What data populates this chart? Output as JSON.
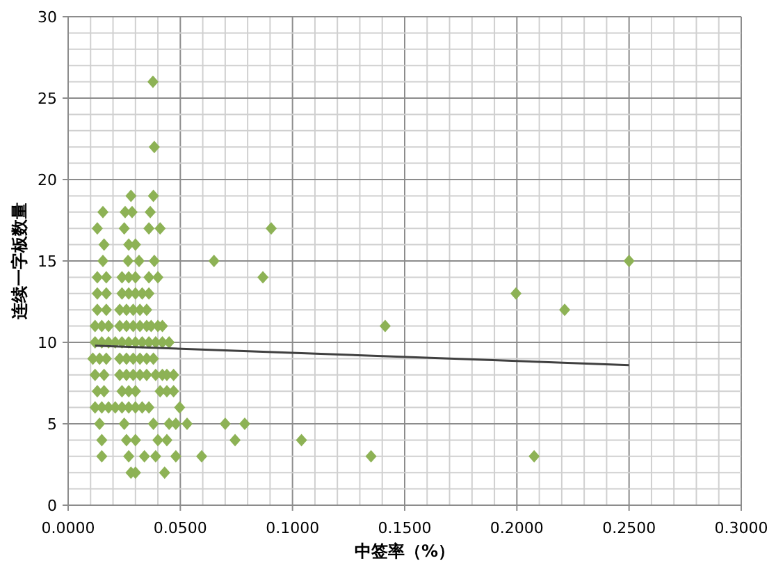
{
  "chart_data": {
    "type": "scatter",
    "xlabel": "中签率（%）",
    "ylabel": "连续一字板数量",
    "xlim": [
      0,
      0.3
    ],
    "ylim": [
      0,
      30
    ],
    "grid": true,
    "marker": "diamond",
    "xticks": [
      {
        "value": 0,
        "label": "0.0000"
      },
      {
        "value": 0.01,
        "label": null
      },
      {
        "value": 0.02,
        "label": null
      },
      {
        "value": 0.03,
        "label": null
      },
      {
        "value": 0.04,
        "label": null
      },
      {
        "value": 0.05,
        "label": "0.0500"
      },
      {
        "value": 0.06,
        "label": null
      },
      {
        "value": 0.07,
        "label": null
      },
      {
        "value": 0.08,
        "label": null
      },
      {
        "value": 0.09,
        "label": null
      },
      {
        "value": 0.1,
        "label": "0.1000"
      },
      {
        "value": 0.11,
        "label": null
      },
      {
        "value": 0.12,
        "label": null
      },
      {
        "value": 0.13,
        "label": null
      },
      {
        "value": 0.14,
        "label": null
      },
      {
        "value": 0.15,
        "label": "0.1500"
      },
      {
        "value": 0.16,
        "label": null
      },
      {
        "value": 0.17,
        "label": null
      },
      {
        "value": 0.18,
        "label": null
      },
      {
        "value": 0.19,
        "label": null
      },
      {
        "value": 0.2,
        "label": "0.2000"
      },
      {
        "value": 0.21,
        "label": null
      },
      {
        "value": 0.22,
        "label": null
      },
      {
        "value": 0.23,
        "label": null
      },
      {
        "value": 0.24,
        "label": null
      },
      {
        "value": 0.25,
        "label": "0.2500"
      },
      {
        "value": 0.26,
        "label": null
      },
      {
        "value": 0.27,
        "label": null
      },
      {
        "value": 0.28,
        "label": null
      },
      {
        "value": 0.29,
        "label": null
      },
      {
        "value": 0.3,
        "label": "0.3000"
      }
    ],
    "yticks": [
      0,
      {
        "value": 1,
        "label": null
      },
      {
        "value": 2,
        "label": null
      },
      {
        "value": 3,
        "label": null
      },
      {
        "value": 4,
        "label": null
      },
      5,
      {
        "value": 6,
        "label": null
      },
      {
        "value": 7,
        "label": null
      },
      {
        "value": 8,
        "label": null
      },
      {
        "value": 9,
        "label": null
      },
      10,
      {
        "value": 11,
        "label": null
      },
      {
        "value": 12,
        "label": null
      },
      {
        "value": 13,
        "label": null
      },
      {
        "value": 14,
        "label": null
      },
      15,
      {
        "value": 16,
        "label": null
      },
      {
        "value": 17,
        "label": null
      },
      {
        "value": 18,
        "label": null
      },
      {
        "value": 19,
        "label": null
      },
      20,
      {
        "value": 21,
        "label": null
      },
      {
        "value": 22,
        "label": null
      },
      {
        "value": 23,
        "label": null
      },
      {
        "value": 24,
        "label": null
      },
      25,
      {
        "value": 26,
        "label": null
      },
      {
        "value": 27,
        "label": null
      },
      {
        "value": 28,
        "label": null
      },
      {
        "value": 29,
        "label": null
      },
      30
    ],
    "series": [
      {
        "color": "#8db255",
        "x": [
          0.0378,
          0.0384,
          0.028,
          0.038,
          0.0155,
          0.0254,
          0.0285,
          0.0366,
          0.013,
          0.025,
          0.036,
          0.041,
          0.0905,
          0.016,
          0.027,
          0.03,
          0.0155,
          0.0267,
          0.0316,
          0.0384,
          0.065,
          0.25,
          0.013,
          0.017,
          0.024,
          0.027,
          0.03,
          0.036,
          0.04,
          0.0868,
          0.013,
          0.017,
          0.024,
          0.027,
          0.03,
          0.033,
          0.036,
          0.1996,
          0.013,
          0.017,
          0.023,
          0.026,
          0.029,
          0.032,
          0.035,
          0.2213,
          0.012,
          0.015,
          0.018,
          0.023,
          0.026,
          0.029,
          0.032,
          0.035,
          0.037,
          0.04,
          0.042,
          0.1413,
          0.012,
          0.015,
          0.018,
          0.021,
          0.024,
          0.027,
          0.03,
          0.033,
          0.036,
          0.039,
          0.042,
          0.045,
          0.011,
          0.014,
          0.017,
          0.023,
          0.026,
          0.029,
          0.032,
          0.035,
          0.038,
          0.012,
          0.016,
          0.023,
          0.026,
          0.029,
          0.032,
          0.035,
          0.039,
          0.042,
          0.044,
          0.047,
          0.013,
          0.016,
          0.024,
          0.027,
          0.03,
          0.041,
          0.044,
          0.047,
          0.012,
          0.015,
          0.018,
          0.021,
          0.024,
          0.027,
          0.03,
          0.033,
          0.036,
          0.0497,
          0.014,
          0.025,
          0.038,
          0.045,
          0.048,
          0.053,
          0.07,
          0.0787,
          0.015,
          0.026,
          0.03,
          0.04,
          0.044,
          0.0744,
          0.104,
          0.015,
          0.027,
          0.034,
          0.039,
          0.048,
          0.0595,
          0.135,
          0.2077,
          0.028,
          0.03,
          0.043
        ],
        "values": [
          26,
          22,
          19,
          19,
          18,
          18,
          18,
          18,
          17,
          17,
          17,
          17,
          17,
          16,
          16,
          16,
          15,
          15,
          15,
          15,
          15,
          15,
          14,
          14,
          14,
          14,
          14,
          14,
          14,
          14,
          13,
          13,
          13,
          13,
          13,
          13,
          13,
          13,
          12,
          12,
          12,
          12,
          12,
          12,
          12,
          12,
          11,
          11,
          11,
          11,
          11,
          11,
          11,
          11,
          11,
          11,
          11,
          11,
          10,
          10,
          10,
          10,
          10,
          10,
          10,
          10,
          10,
          10,
          10,
          10,
          9,
          9,
          9,
          9,
          9,
          9,
          9,
          9,
          9,
          8,
          8,
          8,
          8,
          8,
          8,
          8,
          8,
          8,
          8,
          8,
          7,
          7,
          7,
          7,
          7,
          7,
          7,
          7,
          6,
          6,
          6,
          6,
          6,
          6,
          6,
          6,
          6,
          6,
          5,
          5,
          5,
          5,
          5,
          5,
          5,
          5,
          4,
          4,
          4,
          4,
          4,
          4,
          4,
          3,
          3,
          3,
          3,
          3,
          3,
          3,
          3,
          2,
          2,
          2
        ]
      },
      {
        "type": "line",
        "color": "#404040",
        "marker": "none",
        "line_style": "solid",
        "x": [
          0.012,
          0.25
        ],
        "values": [
          9.8,
          8.6
        ]
      }
    ]
  }
}
